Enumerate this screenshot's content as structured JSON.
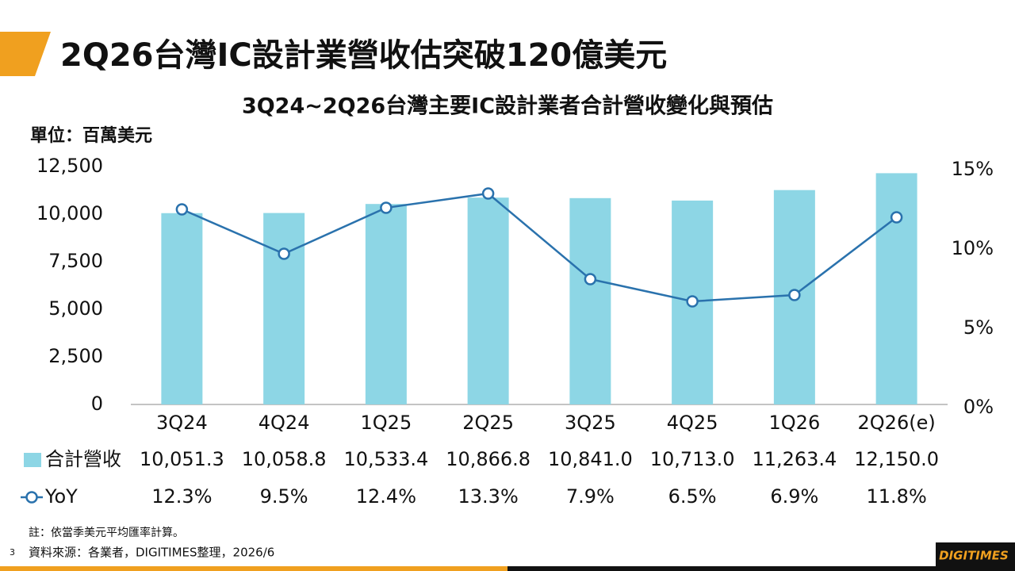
{
  "slide_title": "2Q26台灣IC設計業營收估突破120億美元",
  "page_number": "3",
  "note": "註：依當季美元平均匯率計算。",
  "source": "資料來源：各業者，DIGITIMES整理，2026/6",
  "logo": "DIGITIMES",
  "chart_data": {
    "type": "bar_line",
    "title": "3Q24~2Q26台灣主要IC設計業者合計營收變化與預估",
    "y_label": "單位：百萬美元",
    "categories": [
      "3Q24",
      "4Q24",
      "1Q25",
      "2Q25",
      "3Q25",
      "4Q25",
      "1Q26",
      "2Q26(e)"
    ],
    "series": [
      {
        "name": "合計營收",
        "type": "bar",
        "color": "#8dd6e5",
        "values": [
          10051.3,
          10058.8,
          10533.4,
          10866.8,
          10841.0,
          10713.0,
          11263.4,
          12150.0
        ],
        "value_labels": [
          "10,051.3",
          "10,058.8",
          "10,533.4",
          "10,866.8",
          "10,841.0",
          "10,713.0",
          "11,263.4",
          "12,150.0"
        ]
      },
      {
        "name": "YoY",
        "type": "line",
        "axis": "y2",
        "color": "#2a72ad",
        "values": [
          12.3,
          9.5,
          12.4,
          13.3,
          7.9,
          6.5,
          6.9,
          11.8
        ],
        "value_labels": [
          "12.3%",
          "9.5%",
          "12.4%",
          "13.3%",
          "7.9%",
          "6.5%",
          "6.9%",
          "11.8%"
        ]
      }
    ],
    "ylim": [
      0,
      12500
    ],
    "yticks": [
      0,
      {
        "value": 2500,
        "label": "2,500"
      },
      {
        "value": 5000,
        "label": "5,000"
      },
      {
        "value": 7500,
        "label": "7,500"
      },
      {
        "value": 10000,
        "label": "10,000"
      },
      {
        "value": 12500,
        "label": "12,500"
      }
    ],
    "y2lim": [
      0,
      15
    ],
    "y2ticks": [
      {
        "value": 0,
        "label": "0%"
      },
      {
        "value": 5,
        "label": "5%"
      },
      {
        "value": 10,
        "label": "10%"
      },
      {
        "value": 15,
        "label": "15%"
      }
    ],
    "grid": false
  }
}
